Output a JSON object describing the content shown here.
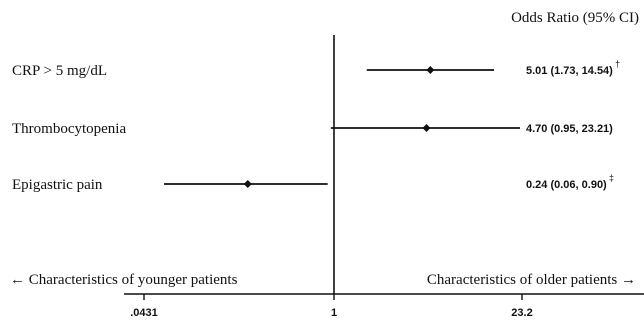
{
  "chart_data": {
    "type": "forest",
    "header": "Odds Ratio (95% CI)",
    "x_scale": "log",
    "x_ticks": [
      {
        "value": 0.0431,
        "label": ".0431"
      },
      {
        "value": 1,
        "label": "1"
      },
      {
        "value": 23.2,
        "label": "23.2"
      }
    ],
    "xlim": [
      0.0431,
      23.2
    ],
    "reference_line": 1,
    "left_direction_label": "← Characteristics of younger patients",
    "right_direction_label": "Characteristics of older patients →",
    "rows": [
      {
        "label": "CRP > 5 mg/dL",
        "or": 5.01,
        "lower": 1.73,
        "upper": 14.54,
        "ci_text": "5.01 (1.73, 14.54)",
        "mark": "†"
      },
      {
        "label": "Thrombocytopenia",
        "or": 4.7,
        "lower": 0.95,
        "upper": 23.21,
        "ci_text": "4.70 (0.95, 23.21)",
        "mark": ""
      },
      {
        "label": "Epigastric pain",
        "or": 0.24,
        "lower": 0.06,
        "upper": 0.9,
        "ci_text": "0.24 (0.06, 0.90)",
        "mark": "‡"
      }
    ]
  }
}
